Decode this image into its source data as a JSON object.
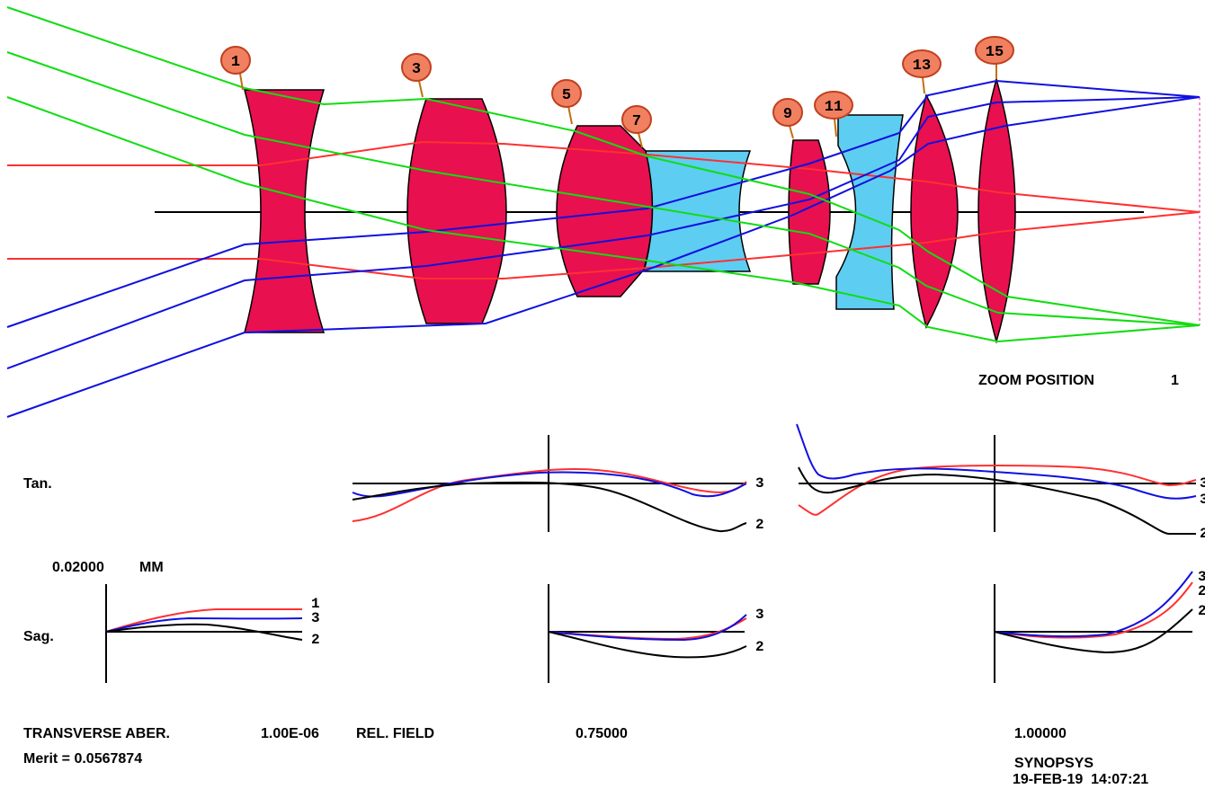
{
  "colors": {
    "lens_crown": "#e8104f",
    "lens_flint": "#5ecdf2",
    "ray_axial": "#ff3030",
    "ray_field_mid": "#1010e0",
    "ray_field_edge": "#10dd10",
    "tag_fill": "#f08060",
    "tag_stroke": "#c04020",
    "axis": "#000000",
    "curve_black": "#000000",
    "curve_blue": "#1010e0",
    "curve_red": "#ff3030",
    "image_plane": "#ff66cc"
  },
  "surface_tags": [
    "1",
    "3",
    "5",
    "7",
    "9",
    "11",
    "13",
    "15"
  ],
  "zoom": {
    "label": "ZOOM POSITION",
    "value": "1"
  },
  "plot_labels": {
    "tangential": "Tan.",
    "sagittal": "Sag.",
    "scale_value": "0.02000",
    "scale_unit": "MM"
  },
  "curve_labels": {
    "tan_mid": [
      "3",
      "2"
    ],
    "tan_edge": [
      "3",
      "3",
      "2"
    ],
    "sag_axis": [
      "1",
      "3",
      "2"
    ],
    "sag_mid": [
      "3",
      "2"
    ],
    "sag_edge": [
      "3",
      "2",
      "2"
    ]
  },
  "footer": {
    "transverse": "TRANSVERSE ABER.",
    "wavelength": "1.00E-06",
    "rel_field": "REL. FIELD",
    "field_1": "0.75000",
    "field_2": "1.00000",
    "merit": "Merit = 0.0567874",
    "program": "SYNOPSYS",
    "datetime": "19-FEB-19  14:07:21"
  }
}
